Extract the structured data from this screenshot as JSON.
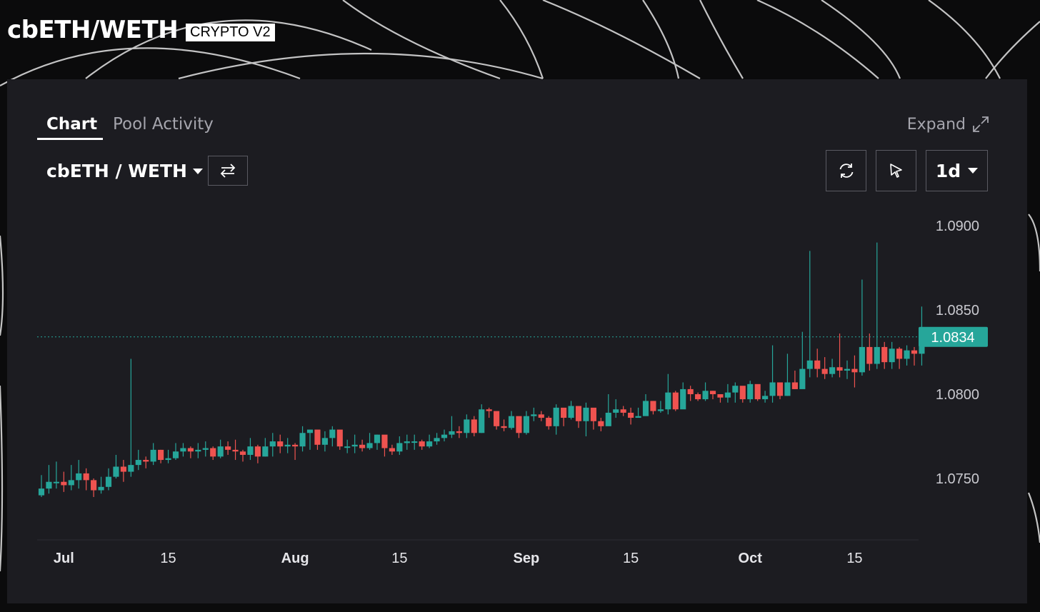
{
  "header": {
    "title": "cbETH/WETH",
    "badge": "CRYPTO V2"
  },
  "tabs": [
    {
      "label": "Chart",
      "active": true
    },
    {
      "label": "Pool Activity",
      "active": false
    }
  ],
  "expand_label": "Expand",
  "pair_selector": "cbETH / WETH",
  "interval": "1d",
  "icons": {
    "swap": "swap-arrows-icon",
    "refresh": "refresh-icon",
    "cursor": "cursor-icon",
    "expand": "expand-arrows-icon"
  },
  "colors": {
    "up": "#26a69a",
    "down": "#ef5350",
    "panel": "#1c1c21",
    "last_price_tag": "#26a69a"
  },
  "chart_data": {
    "type": "candlestick",
    "y_ticks": [
      "1.0900",
      "1.0850",
      "1.0800",
      "1.0750"
    ],
    "y_tick_values": [
      1.09,
      1.085,
      1.08,
      1.075
    ],
    "ylim": [
      1.0725,
      1.0917
    ],
    "x_ticks": [
      {
        "label": "Jul",
        "day": 0,
        "bold": true
      },
      {
        "label": "15",
        "day": 14,
        "bold": false
      },
      {
        "label": "Aug",
        "day": 31,
        "bold": true
      },
      {
        "label": "15",
        "day": 45,
        "bold": false
      },
      {
        "label": "Sep",
        "day": 62,
        "bold": true
      },
      {
        "label": "15",
        "day": 76,
        "bold": false
      },
      {
        "label": "Oct",
        "day": 92,
        "bold": true
      },
      {
        "label": "15",
        "day": 106,
        "bold": false
      }
    ],
    "first_day": -3,
    "last_day": 114,
    "last_price": "1.0834",
    "last_price_value": 1.0834,
    "closes": [
      1.0744,
      1.0748,
      1.0748,
      1.0746,
      1.0749,
      1.0753,
      1.0749,
      1.0743,
      1.0745,
      1.0751,
      1.0757,
      1.0754,
      1.0758,
      1.0761,
      1.076,
      1.0767,
      1.0761,
      1.0762,
      1.0766,
      1.0768,
      1.0766,
      1.0767,
      1.0768,
      1.0763,
      1.0769,
      1.0767,
      1.0766,
      1.0764,
      1.0769,
      1.0763,
      1.0769,
      1.0772,
      1.0769,
      1.077,
      1.0769,
      1.0777,
      1.0779,
      1.077,
      1.0774,
      1.0779,
      1.0769,
      1.0769,
      1.077,
      1.0768,
      1.0771,
      1.0776,
      1.0768,
      1.0766,
      1.0771,
      1.0772,
      1.0772,
      1.0769,
      1.0772,
      1.0774,
      1.0776,
      1.0778,
      1.0777,
      1.0785,
      1.0777,
      1.0791,
      1.079,
      1.0781,
      1.078,
      1.0787,
      1.0777,
      1.0787,
      1.0788,
      1.0786,
      1.0781,
      1.0792,
      1.0786,
      1.0793,
      1.0784,
      1.0792,
      1.0784,
      1.0781,
      1.0789,
      1.0791,
      1.0789,
      1.0786,
      1.0787,
      1.0796,
      1.079,
      1.0791,
      1.0801,
      1.0791,
      1.0803,
      1.08,
      1.0797,
      1.0802,
      1.08,
      1.0798,
      1.0801,
      1.0805,
      1.0797,
      1.0806,
      1.0797,
      1.0799,
      1.0807,
      1.0799,
      1.0807,
      1.0803,
      1.0815,
      1.082,
      1.0815,
      1.0812,
      1.0816,
      1.0814,
      1.0815,
      1.0813,
      1.0828,
      1.0818,
      1.0828,
      1.0819,
      1.0827,
      1.0821,
      1.0826,
      1.0824,
      1.0834
    ],
    "highs": [
      1.0752,
      1.0758,
      1.076,
      1.0754,
      1.0758,
      1.0761,
      1.0756,
      1.075,
      1.0751,
      1.0756,
      1.0764,
      1.0761,
      1.0821,
      1.0767,
      1.0763,
      1.0771,
      1.0767,
      1.0767,
      1.0771,
      1.0771,
      1.0769,
      1.0771,
      1.0772,
      1.0769,
      1.0773,
      1.0772,
      1.0773,
      1.0767,
      1.0774,
      1.077,
      1.0774,
      1.0777,
      1.0776,
      1.0774,
      1.0771,
      1.0781,
      1.0779,
      1.0776,
      1.0778,
      1.0781,
      1.0776,
      1.0773,
      1.0776,
      1.0773,
      1.0777,
      1.0776,
      1.0773,
      1.077,
      1.0775,
      1.0776,
      1.0776,
      1.0773,
      1.0776,
      1.0777,
      1.0779,
      1.0787,
      1.0781,
      1.0788,
      1.0787,
      1.0794,
      1.0792,
      1.0789,
      1.0785,
      1.079,
      1.0786,
      1.079,
      1.0792,
      1.079,
      1.0787,
      1.0794,
      1.0791,
      1.0796,
      1.0792,
      1.0795,
      1.0791,
      1.0786,
      1.08,
      1.0797,
      1.0793,
      1.0792,
      1.0792,
      1.08,
      1.0796,
      1.0796,
      1.0812,
      1.0802,
      1.0807,
      1.0805,
      1.0801,
      1.0807,
      1.0802,
      1.08,
      1.0806,
      1.0807,
      1.0802,
      1.0808,
      1.0804,
      1.0802,
      1.0829,
      1.0805,
      1.0824,
      1.0814,
      1.0837,
      1.0885,
      1.0827,
      1.0822,
      1.0821,
      1.0836,
      1.082,
      1.0823,
      1.0868,
      1.0836,
      1.089,
      1.0831,
      1.0831,
      1.0828,
      1.0829,
      1.0828,
      1.0852
    ],
    "lows": [
      1.0739,
      1.0741,
      1.0744,
      1.0742,
      1.0743,
      1.0744,
      1.0743,
      1.0739,
      1.0741,
      1.0743,
      1.075,
      1.0748,
      1.0751,
      1.0755,
      1.0756,
      1.0758,
      1.0759,
      1.0759,
      1.0761,
      1.0763,
      1.0762,
      1.0762,
      1.0763,
      1.0761,
      1.0762,
      1.0764,
      1.0761,
      1.076,
      1.0761,
      1.0759,
      1.0763,
      1.0763,
      1.0765,
      1.0765,
      1.0761,
      1.0766,
      1.0767,
      1.0767,
      1.0766,
      1.0769,
      1.0767,
      1.0765,
      1.0765,
      1.0766,
      1.0767,
      1.0767,
      1.0763,
      1.0764,
      1.0764,
      1.0767,
      1.0767,
      1.0767,
      1.0768,
      1.077,
      1.0772,
      1.0774,
      1.0774,
      1.0774,
      1.0775,
      1.0777,
      1.0786,
      1.0779,
      1.0778,
      1.0779,
      1.0774,
      1.0776,
      1.0784,
      1.0784,
      1.0779,
      1.0776,
      1.0781,
      1.0785,
      1.078,
      1.0775,
      1.0779,
      1.0778,
      1.0782,
      1.0786,
      1.0787,
      1.0782,
      1.0787,
      1.0788,
      1.0788,
      1.0789,
      1.0788,
      1.079,
      1.0797,
      1.0796,
      1.0796,
      1.0796,
      1.0797,
      1.0795,
      1.0795,
      1.0795,
      1.0795,
      1.0795,
      1.0796,
      1.0795,
      1.0795,
      1.0797,
      1.0799,
      1.0803,
      1.0805,
      1.081,
      1.081,
      1.0809,
      1.081,
      1.081,
      1.0809,
      1.0804,
      1.0811,
      1.0814,
      1.0815,
      1.0815,
      1.0815,
      1.0815,
      1.0817,
      1.0817,
      1.0817
    ]
  }
}
